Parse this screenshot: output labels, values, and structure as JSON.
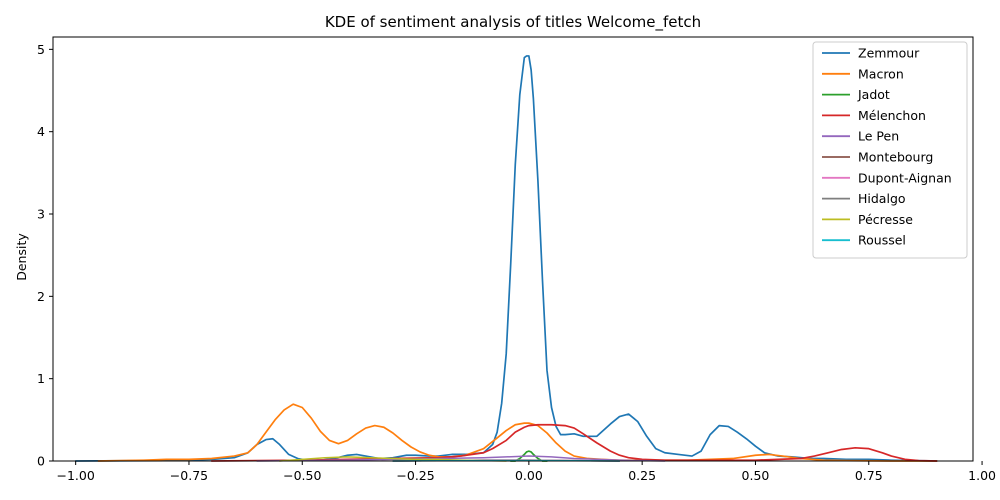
{
  "chart_data": {
    "type": "line",
    "title": "KDE of sentiment analysis of titles Welcome_fetch",
    "xlabel": "",
    "ylabel": "Density",
    "xlim": [
      -1.05,
      0.98
    ],
    "ylim": [
      0,
      5.15
    ],
    "xticks": [
      -1.0,
      -0.75,
      -0.5,
      -0.25,
      0.0,
      0.25,
      0.5,
      0.75,
      1.0
    ],
    "xtick_labels": [
      "−1.00",
      "−0.75",
      "−0.50",
      "−0.25",
      "0.00",
      "0.25",
      "0.50",
      "0.75",
      "1.00"
    ],
    "yticks": [
      0,
      1,
      2,
      3,
      4,
      5
    ],
    "ytick_labels": [
      "0",
      "1",
      "2",
      "3",
      "4",
      "5"
    ],
    "grid": false,
    "legend_position": "top-right",
    "series": [
      {
        "name": "Zemmour",
        "color": "#1f77b4",
        "x": [
          -1.0,
          -0.8,
          -0.7,
          -0.65,
          -0.62,
          -0.6,
          -0.58,
          -0.565,
          -0.55,
          -0.53,
          -0.51,
          -0.49,
          -0.46,
          -0.43,
          -0.4,
          -0.38,
          -0.36,
          -0.33,
          -0.3,
          -0.27,
          -0.25,
          -0.22,
          -0.2,
          -0.17,
          -0.14,
          -0.12,
          -0.1,
          -0.08,
          -0.07,
          -0.06,
          -0.05,
          -0.04,
          -0.03,
          -0.02,
          -0.01,
          -0.005,
          0.0,
          0.005,
          0.01,
          0.02,
          0.03,
          0.04,
          0.05,
          0.06,
          0.07,
          0.08,
          0.1,
          0.12,
          0.15,
          0.18,
          0.2,
          0.22,
          0.24,
          0.26,
          0.28,
          0.3,
          0.33,
          0.36,
          0.38,
          0.4,
          0.42,
          0.44,
          0.46,
          0.48,
          0.5,
          0.52,
          0.55,
          0.58,
          0.62,
          0.65,
          0.7,
          0.75,
          0.8,
          0.85,
          0.9
        ],
        "values": [
          0,
          0.005,
          0.02,
          0.04,
          0.1,
          0.2,
          0.26,
          0.27,
          0.2,
          0.08,
          0.03,
          0.01,
          0.01,
          0.03,
          0.07,
          0.08,
          0.06,
          0.03,
          0.04,
          0.07,
          0.07,
          0.06,
          0.06,
          0.08,
          0.08,
          0.09,
          0.1,
          0.2,
          0.35,
          0.7,
          1.3,
          2.4,
          3.6,
          4.45,
          4.9,
          4.92,
          4.92,
          4.75,
          4.4,
          3.4,
          2.2,
          1.1,
          0.65,
          0.42,
          0.32,
          0.32,
          0.33,
          0.3,
          0.3,
          0.45,
          0.54,
          0.57,
          0.48,
          0.3,
          0.15,
          0.1,
          0.08,
          0.06,
          0.12,
          0.32,
          0.43,
          0.42,
          0.35,
          0.27,
          0.18,
          0.1,
          0.06,
          0.05,
          0.03,
          0.03,
          0.02,
          0.02,
          0.01,
          0.005,
          0
        ],
        "linewidth": 1.7
      },
      {
        "name": "Macron",
        "color": "#ff7f0e",
        "x": [
          -0.95,
          -0.85,
          -0.8,
          -0.75,
          -0.7,
          -0.65,
          -0.62,
          -0.6,
          -0.58,
          -0.56,
          -0.54,
          -0.52,
          -0.5,
          -0.48,
          -0.46,
          -0.44,
          -0.42,
          -0.4,
          -0.38,
          -0.36,
          -0.34,
          -0.32,
          -0.3,
          -0.28,
          -0.26,
          -0.24,
          -0.22,
          -0.2,
          -0.17,
          -0.14,
          -0.1,
          -0.07,
          -0.05,
          -0.03,
          -0.01,
          0.0,
          0.02,
          0.04,
          0.06,
          0.08,
          0.1,
          0.13,
          0.16,
          0.2,
          0.25,
          0.3,
          0.35,
          0.4,
          0.45,
          0.5,
          0.53,
          0.56,
          0.6,
          0.65,
          0.7,
          0.8,
          0.9
        ],
        "values": [
          0,
          0.01,
          0.02,
          0.02,
          0.03,
          0.06,
          0.1,
          0.2,
          0.35,
          0.5,
          0.62,
          0.69,
          0.65,
          0.52,
          0.36,
          0.25,
          0.21,
          0.25,
          0.33,
          0.4,
          0.43,
          0.41,
          0.34,
          0.25,
          0.17,
          0.11,
          0.07,
          0.05,
          0.05,
          0.07,
          0.15,
          0.28,
          0.37,
          0.44,
          0.46,
          0.46,
          0.43,
          0.34,
          0.22,
          0.12,
          0.06,
          0.03,
          0.02,
          0.01,
          0.01,
          0.01,
          0.01,
          0.02,
          0.03,
          0.07,
          0.08,
          0.06,
          0.03,
          0.01,
          0.005,
          0,
          0
        ],
        "linewidth": 1.7
      },
      {
        "name": "Jadot",
        "color": "#2ca02c",
        "x": [
          -0.04,
          -0.03,
          -0.02,
          -0.01,
          -0.005,
          0.0,
          0.005,
          0.01,
          0.02,
          0.03,
          0.04
        ],
        "values": [
          0,
          0.0,
          0.03,
          0.08,
          0.11,
          0.12,
          0.11,
          0.08,
          0.03,
          0.0,
          0
        ],
        "linewidth": 1.7
      },
      {
        "name": "Mélenchon",
        "color": "#d62728",
        "x": [
          -0.7,
          -0.5,
          -0.4,
          -0.3,
          -0.2,
          -0.15,
          -0.1,
          -0.08,
          -0.05,
          -0.03,
          -0.01,
          0.0,
          0.02,
          0.05,
          0.08,
          0.1,
          0.12,
          0.15,
          0.18,
          0.2,
          0.22,
          0.25,
          0.3,
          0.4,
          0.5,
          0.55,
          0.6,
          0.63,
          0.66,
          0.69,
          0.72,
          0.75,
          0.78,
          0.8,
          0.83,
          0.86,
          0.9
        ],
        "values": [
          0,
          0.01,
          0.02,
          0.03,
          0.04,
          0.06,
          0.1,
          0.15,
          0.25,
          0.35,
          0.41,
          0.43,
          0.44,
          0.44,
          0.43,
          0.4,
          0.33,
          0.22,
          0.12,
          0.07,
          0.04,
          0.02,
          0.01,
          0.01,
          0.01,
          0.02,
          0.03,
          0.06,
          0.1,
          0.14,
          0.16,
          0.15,
          0.1,
          0.06,
          0.02,
          0.005,
          0
        ],
        "linewidth": 1.7
      },
      {
        "name": "Le Pen",
        "color": "#9467bd",
        "x": [
          -0.6,
          -0.4,
          -0.3,
          -0.2,
          -0.1,
          -0.05,
          0.0,
          0.05,
          0.1,
          0.2,
          0.3
        ],
        "values": [
          0,
          0.01,
          0.02,
          0.03,
          0.04,
          0.05,
          0.06,
          0.05,
          0.03,
          0.01,
          0
        ],
        "linewidth": 1.5
      },
      {
        "name": "Montebourg",
        "color": "#8c564b",
        "x": [
          -0.3,
          -0.2,
          -0.1,
          0.0,
          0.1,
          0.2
        ],
        "values": [
          0,
          0.005,
          0.01,
          0.01,
          0.005,
          0
        ],
        "linewidth": 1.5
      },
      {
        "name": "Dupont-Aignan",
        "color": "#e377c2",
        "x": [
          -0.3,
          -0.2,
          -0.1,
          0.0,
          0.1,
          0.2
        ],
        "values": [
          0,
          0.005,
          0.01,
          0.01,
          0.005,
          0
        ],
        "linewidth": 1.5
      },
      {
        "name": "Hidalgo",
        "color": "#7f7f7f",
        "x": [
          -0.3,
          -0.2,
          -0.1,
          0.0,
          0.1,
          0.2
        ],
        "values": [
          0,
          0.005,
          0.008,
          0.008,
          0.005,
          0
        ],
        "linewidth": 1.5
      },
      {
        "name": "Pécresse",
        "color": "#bcbd22",
        "x": [
          -0.55,
          -0.5,
          -0.45,
          -0.4,
          -0.35,
          -0.3,
          -0.25,
          -0.2,
          -0.15,
          -0.1,
          -0.05
        ],
        "values": [
          0,
          0.02,
          0.04,
          0.05,
          0.04,
          0.03,
          0.02,
          0.02,
          0.01,
          0.005,
          0
        ],
        "linewidth": 1.5
      },
      {
        "name": "Roussel",
        "color": "#17becf",
        "x": [
          -0.3,
          -0.2,
          -0.1,
          0.0,
          0.1,
          0.2
        ],
        "values": [
          0,
          0.003,
          0.005,
          0.005,
          0.003,
          0
        ],
        "linewidth": 1.5
      }
    ]
  }
}
